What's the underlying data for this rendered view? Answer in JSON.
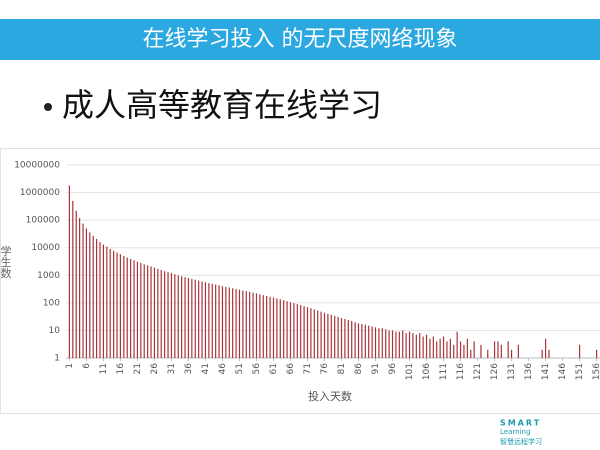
{
  "slide": {
    "banner": "在线学习投入 的无尺度网络现象",
    "bullet": "成人高等教育在线学习",
    "logo": [
      "SMART",
      "Learning",
      "智慧远程学习"
    ]
  },
  "chart_data": {
    "type": "bar",
    "y_label": "学生数",
    "x_label": "投入天数",
    "color": "#a8343a",
    "log_y": true,
    "grid": true,
    "ylim": [
      1,
      10000000
    ],
    "yticks": [
      1,
      10,
      100,
      1000,
      10000,
      100000,
      1000000,
      10000000
    ],
    "xlim": [
      0,
      157
    ],
    "xticks": [
      1,
      6,
      11,
      16,
      21,
      26,
      31,
      36,
      41,
      46,
      51,
      56,
      61,
      66,
      71,
      76,
      81,
      86,
      91,
      96,
      101,
      106,
      111,
      116,
      121,
      126,
      131,
      136,
      141,
      146,
      151,
      156
    ],
    "x": [
      1,
      2,
      3,
      4,
      5,
      6,
      7,
      8,
      9,
      10,
      11,
      12,
      13,
      14,
      15,
      16,
      17,
      18,
      19,
      20,
      21,
      22,
      23,
      24,
      25,
      26,
      27,
      28,
      29,
      30,
      31,
      32,
      33,
      34,
      35,
      36,
      37,
      38,
      39,
      40,
      41,
      42,
      43,
      44,
      45,
      46,
      47,
      48,
      49,
      50,
      51,
      52,
      53,
      54,
      55,
      56,
      57,
      58,
      59,
      60,
      61,
      62,
      63,
      64,
      65,
      66,
      67,
      68,
      69,
      70,
      71,
      72,
      73,
      74,
      75,
      76,
      77,
      78,
      79,
      80,
      81,
      82,
      83,
      84,
      85,
      86,
      87,
      88,
      89,
      90,
      91,
      92,
      93,
      94,
      95,
      96,
      97,
      98,
      99,
      100,
      101,
      102,
      103,
      104,
      105,
      106,
      107,
      108,
      109,
      110,
      111,
      112,
      113,
      114,
      115,
      116,
      117,
      118,
      119,
      120,
      121,
      122,
      123,
      124,
      125,
      126,
      127,
      128,
      129,
      130,
      131,
      132,
      133,
      134,
      135,
      136,
      137,
      138,
      139,
      140,
      141,
      142,
      143,
      144,
      145,
      146,
      147,
      148,
      149,
      150,
      151,
      152,
      153,
      154,
      155,
      156
    ],
    "values": [
      1800000,
      500000,
      220000,
      120000,
      75000,
      50000,
      36000,
      27000,
      21000,
      16000,
      13000,
      11000,
      9000,
      7800,
      6700,
      5800,
      5000,
      4400,
      3900,
      3500,
      3100,
      2800,
      2500,
      2300,
      2100,
      1900,
      1700,
      1550,
      1400,
      1300,
      1200,
      1100,
      1000,
      930,
      860,
      800,
      740,
      690,
      640,
      600,
      560,
      520,
      490,
      460,
      430,
      400,
      380,
      360,
      340,
      320,
      300,
      280,
      265,
      250,
      235,
      220,
      205,
      190,
      180,
      165,
      155,
      145,
      135,
      125,
      115,
      105,
      98,
      90,
      83,
      76,
      70,
      64,
      58,
      53,
      48,
      44,
      40,
      37,
      34,
      31,
      28,
      26,
      24,
      22,
      20,
      18,
      17,
      16,
      15,
      14,
      13,
      12,
      12,
      11,
      10,
      10,
      9,
      9,
      10,
      8,
      9,
      8,
      7,
      8,
      6,
      7,
      5,
      6,
      4,
      5,
      6,
      4,
      5,
      3,
      9,
      4,
      3,
      5,
      2,
      4,
      null,
      3,
      null,
      2,
      null,
      4,
      4,
      3,
      null,
      4,
      2,
      null,
      3,
      null,
      null,
      null,
      null,
      null,
      null,
      2,
      5,
      2,
      null,
      null,
      null,
      null,
      null,
      null,
      null,
      null,
      3,
      null,
      null,
      null,
      null,
      2
    ]
  }
}
